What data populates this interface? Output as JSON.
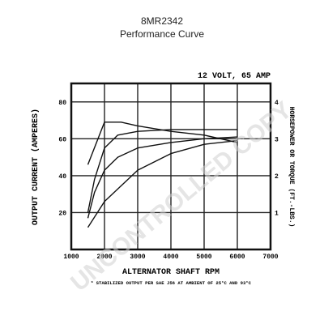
{
  "header": {
    "model": "8MR2342",
    "subtitle": "Performance Curve"
  },
  "watermark": "UNCONTROLLED COPY",
  "chart_data": {
    "type": "line",
    "title": "12 VOLT, 65 AMP",
    "xlabel": "ALTERNATOR SHAFT RPM",
    "ylabel": "OUTPUT CURRENT (AMPERES)",
    "y2label": "HORSEPOWER OR TORQUE (FT.-LBS.)",
    "xlim": [
      1000,
      7000
    ],
    "ylim": [
      0,
      90
    ],
    "y2lim": [
      0,
      4.5
    ],
    "x_ticks": [
      "1000",
      "2000",
      "3000",
      "4000",
      "5000",
      "6000",
      "7000"
    ],
    "y_ticks": [
      "20",
      "40",
      "60",
      "80"
    ],
    "y2_ticks": [
      "1",
      "2",
      "3",
      "4"
    ],
    "grid": true,
    "footnote": "* STABILIZED OUTPUT PER SAE J56 AT AMBIENT OF 25°C AND 93°C",
    "series": [
      {
        "label": "",
        "axis": "left",
        "x": [
          1500,
          1700,
          2000,
          2400,
          3000,
          4000,
          5000,
          6000
        ],
        "y": [
          20,
          38,
          55,
          62,
          64,
          65,
          65,
          65
        ]
      },
      {
        "label": "",
        "axis": "left",
        "x": [
          1500,
          1700,
          2000,
          2400,
          3000,
          4000,
          5000,
          6000
        ],
        "y": [
          17,
          31,
          43,
          50,
          55,
          58,
          60,
          61
        ]
      },
      {
        "label": "",
        "axis": "right",
        "x": [
          1500,
          2000,
          2500,
          3000,
          4000,
          5000,
          6000
        ],
        "y": [
          2.3,
          3.45,
          3.45,
          3.35,
          3.2,
          3.1,
          2.9
        ]
      },
      {
        "label": "",
        "axis": "right",
        "x": [
          1500,
          2000,
          3000,
          4000,
          5000,
          6000
        ],
        "y": [
          0.6,
          1.3,
          2.15,
          2.6,
          2.85,
          2.95
        ]
      }
    ]
  }
}
